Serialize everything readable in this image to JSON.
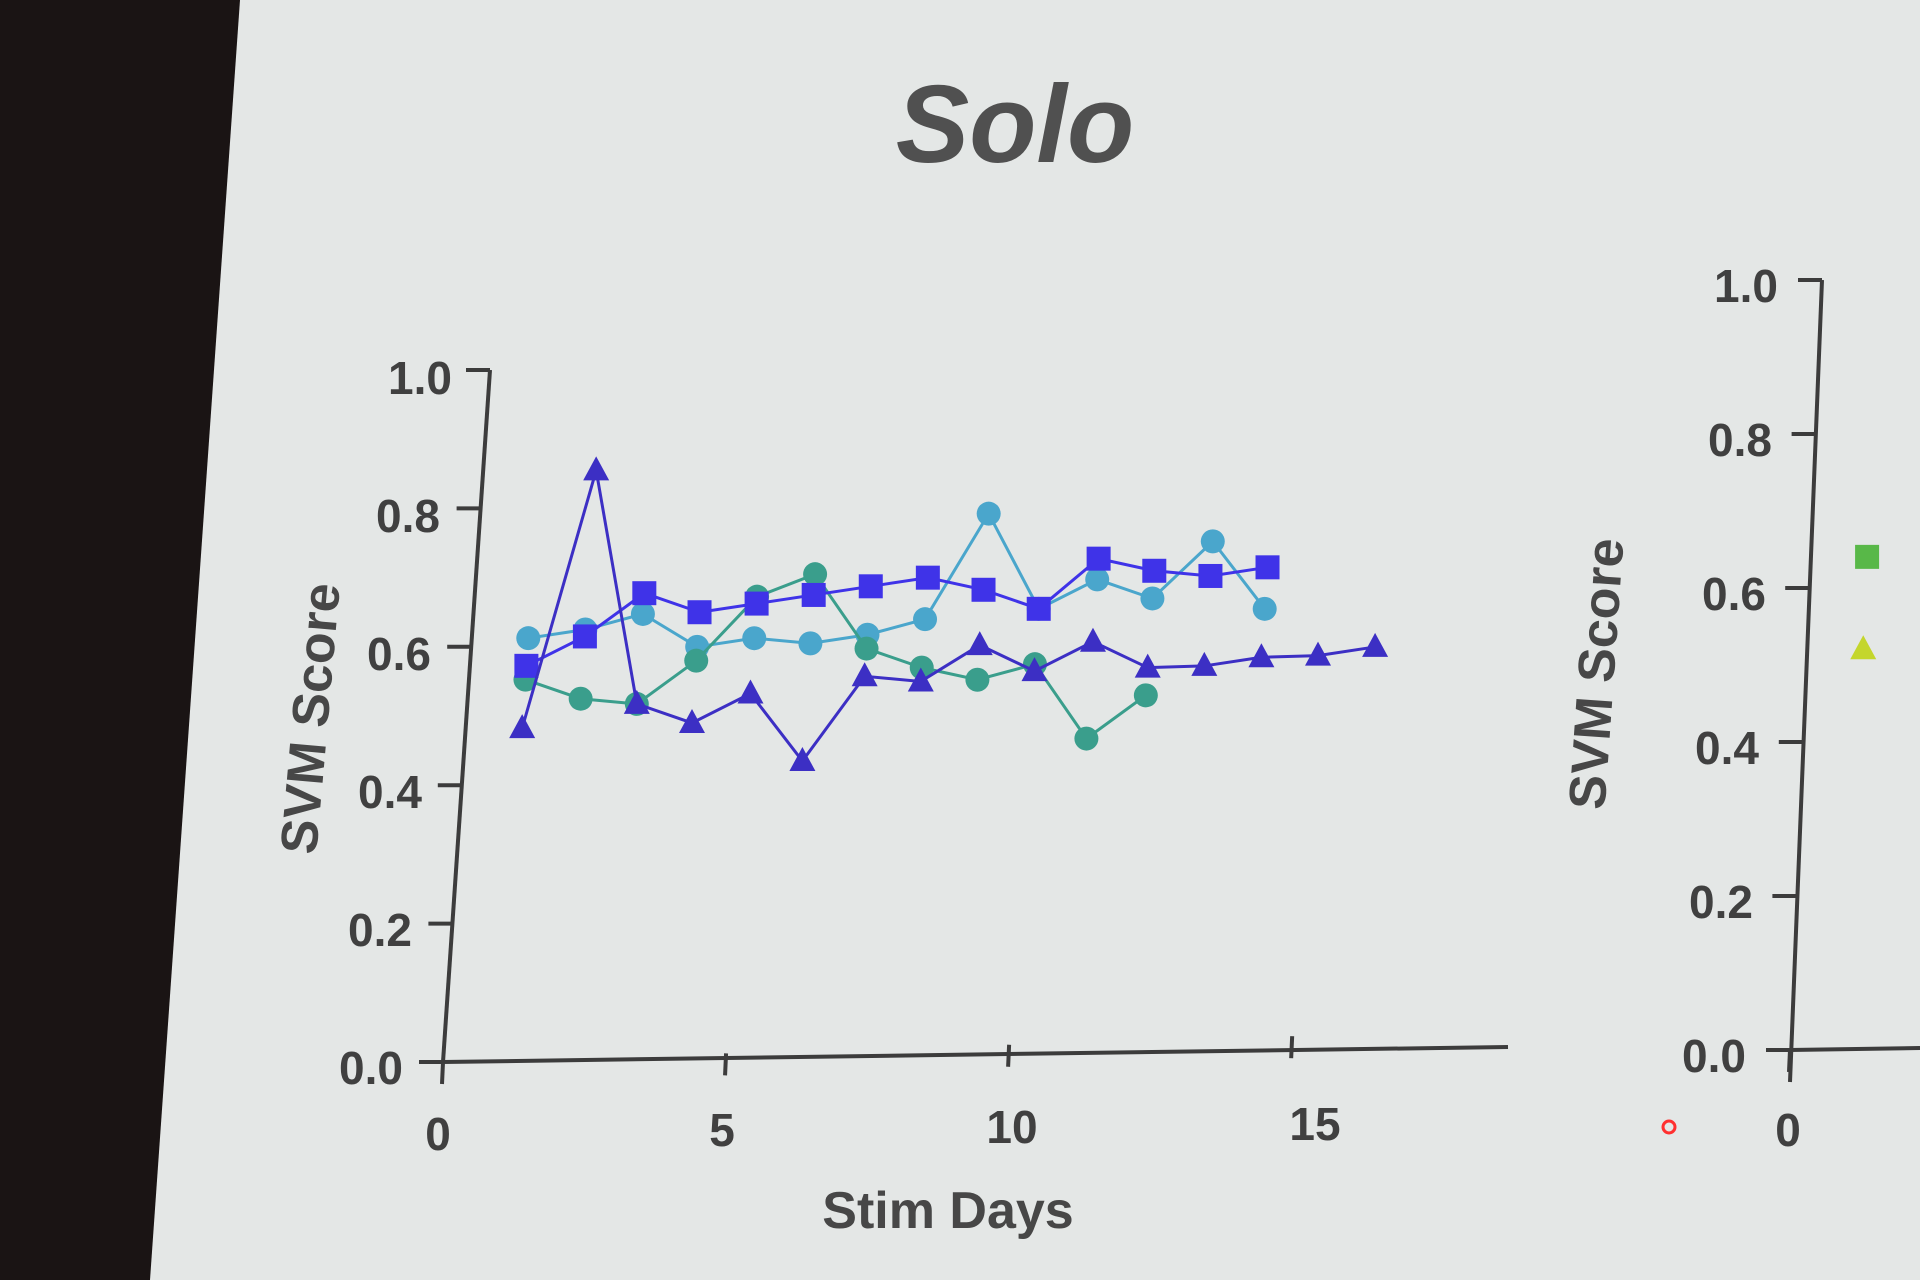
{
  "chart_data": [
    {
      "type": "line",
      "title": "Solo",
      "xlabel": "Stim Days",
      "ylabel": "SVM Score",
      "xlim": [
        0,
        18
      ],
      "ylim": [
        0,
        1
      ],
      "xticks": [
        "0",
        "5",
        "10",
        "15"
      ],
      "yticks": [
        "0.0",
        "0.2",
        "0.4",
        "0.6",
        "0.8",
        "1.0"
      ],
      "grid": false,
      "series": [
        {
          "marker": "circle",
          "color": "#4aa6cc",
          "x": [
            1,
            2,
            3,
            4,
            5,
            6,
            7,
            8,
            9,
            10,
            11,
            12,
            13,
            14
          ],
          "y": [
            0.61,
            0.62,
            0.64,
            0.59,
            0.6,
            0.59,
            0.6,
            0.62,
            0.77,
            0.63,
            0.67,
            0.64,
            0.72,
            0.62
          ]
        },
        {
          "marker": "circle",
          "color": "#3a9e8c",
          "x": [
            1,
            2,
            3,
            4,
            5,
            6,
            7,
            8,
            9,
            10,
            11,
            12
          ],
          "y": [
            0.55,
            0.52,
            0.51,
            0.57,
            0.66,
            0.69,
            0.58,
            0.55,
            0.53,
            0.55,
            0.44,
            0.5
          ]
        },
        {
          "marker": "square",
          "color": "#3f33e8",
          "x": [
            1,
            2,
            3,
            4,
            5,
            6,
            7,
            8,
            9,
            10,
            11,
            12,
            13,
            14
          ],
          "y": [
            0.57,
            0.61,
            0.67,
            0.64,
            0.65,
            0.66,
            0.67,
            0.68,
            0.66,
            0.63,
            0.7,
            0.68,
            0.67,
            0.68
          ]
        },
        {
          "marker": "triangle",
          "color": "#3c2fc4",
          "x": [
            1,
            2,
            3,
            4,
            5,
            6,
            7,
            8,
            9,
            10,
            11,
            12,
            13,
            14,
            15,
            16
          ],
          "y": [
            0.48,
            0.85,
            0.51,
            0.48,
            0.52,
            0.42,
            0.54,
            0.53,
            0.58,
            0.54,
            0.58,
            0.54,
            0.54,
            0.55,
            0.55,
            0.56
          ]
        }
      ]
    },
    {
      "type": "line",
      "title": "",
      "xlabel": "",
      "ylabel": "SVM Score",
      "xlim": [
        0,
        18
      ],
      "ylim": [
        0,
        1
      ],
      "xticks": [
        "0"
      ],
      "yticks": [
        "0.0",
        "0.2",
        "0.4",
        "0.6",
        "0.8",
        "1.0"
      ],
      "grid": false,
      "series": [
        {
          "marker": "square",
          "color": "#58b848",
          "x": [
            1
          ],
          "y": [
            0.64
          ]
        },
        {
          "marker": "triangle",
          "color": "#c4d62c",
          "x": [
            1
          ],
          "y": [
            0.52
          ]
        }
      ]
    }
  ]
}
